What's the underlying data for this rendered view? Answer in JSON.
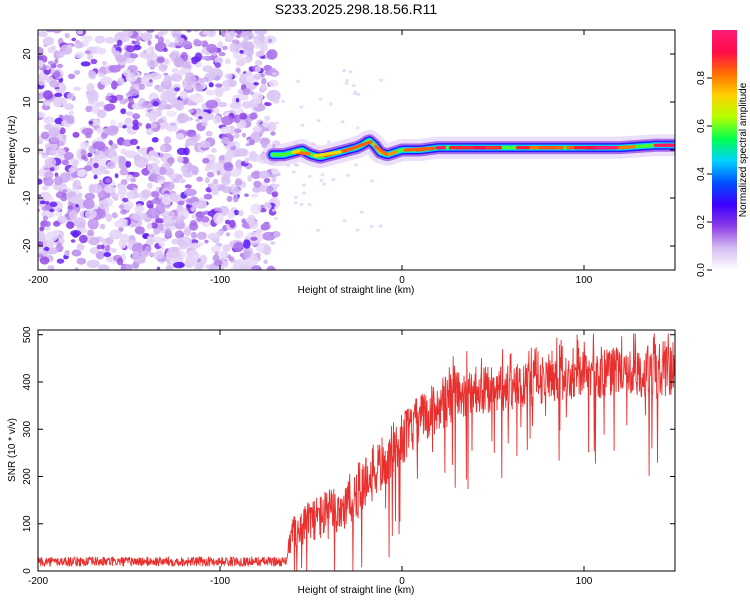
{
  "title": "S233.2025.298.18.56.R11",
  "chart_data": [
    {
      "type": "heatmap",
      "panel": "spectrogram",
      "xlabel": "Height of straight line (km)",
      "ylabel": "Frequency (Hz)",
      "xlim": [
        -200,
        150
      ],
      "ylim": [
        -25,
        25
      ],
      "xticks": [
        -200,
        -100,
        0,
        100
      ],
      "yticks": [
        -20,
        -10,
        0,
        10,
        20
      ],
      "xtick_labels": [
        "-200",
        "-100",
        "0",
        "100"
      ],
      "ytick_labels": [
        "-20",
        "-10",
        "0",
        "10",
        "20"
      ],
      "noise_region_x": [
        -200,
        -71
      ],
      "signal_start_x": -71,
      "ridge": {
        "x": [
          -71,
          -65,
          -60,
          -55,
          -50,
          -45,
          -40,
          -35,
          -30,
          -25,
          -22,
          -18,
          -15,
          -12,
          -8,
          -4,
          0,
          10,
          20,
          40,
          60,
          80,
          100,
          120,
          140,
          150
        ],
        "freq": [
          -1,
          -1,
          -0.5,
          0,
          -1,
          -1.5,
          -1,
          -0.5,
          0,
          0.5,
          1,
          2,
          1,
          -0.5,
          -1,
          -0.5,
          0,
          0,
          0.5,
          0.5,
          0.5,
          0.5,
          0.5,
          0.5,
          1,
          1
        ]
      },
      "colorbar": {
        "label": "Normalized spectral amplitude",
        "range": [
          0,
          1
        ],
        "ticks": [
          0.0,
          0.2,
          0.4,
          0.6,
          0.8
        ],
        "tick_labels": [
          "0.0",
          "0.2",
          "0.4",
          "0.6",
          "0.8"
        ],
        "colors": [
          "#ffffff",
          "#d6bdf2",
          "#8c3ce6",
          "#3c00ff",
          "#0050ff",
          "#00d2ff",
          "#00ff50",
          "#b4ff00",
          "#ffd200",
          "#ff6e00",
          "#ff0a46",
          "#ff1e78"
        ]
      }
    },
    {
      "type": "line",
      "panel": "snr",
      "xlabel": "Height of straight line (km)",
      "ylabel": "SNR (10 * v/v)",
      "xlim": [
        -200,
        150
      ],
      "ylim": [
        0,
        510
      ],
      "xticks": [
        -200,
        -100,
        0,
        100
      ],
      "yticks": [
        0,
        100,
        200,
        300,
        400,
        500
      ],
      "xtick_labels": [
        "-200",
        "-100",
        "0",
        "100"
      ],
      "ytick_labels": [
        "0",
        "100",
        "200",
        "300",
        "400",
        "500"
      ],
      "color": "#e8302f",
      "envelope": {
        "x": [
          -200,
          -72,
          -64,
          -60,
          -50,
          -40,
          -30,
          -20,
          -10,
          0,
          10,
          20,
          30,
          40,
          60,
          80,
          100,
          120,
          140,
          150
        ],
        "mean": [
          20,
          20,
          20,
          80,
          110,
          120,
          140,
          190,
          230,
          280,
          320,
          350,
          370,
          380,
          390,
          405,
          415,
          420,
          425,
          430
        ],
        "spread": [
          10,
          10,
          10,
          35,
          45,
          55,
          60,
          60,
          60,
          55,
          55,
          55,
          55,
          50,
          50,
          50,
          50,
          55,
          60,
          60
        ]
      }
    }
  ]
}
